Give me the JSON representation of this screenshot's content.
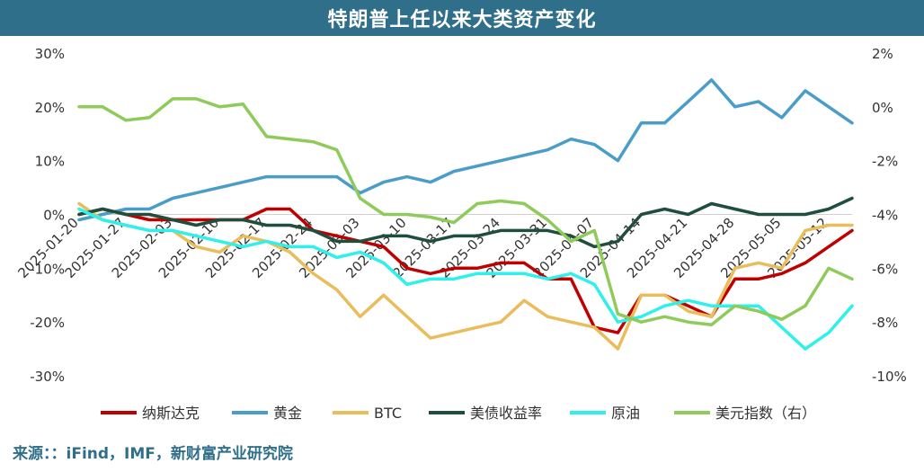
{
  "header": {
    "title": "特朗普上任以来大类资产变化"
  },
  "footer": {
    "source": "来源：：iFind，IMF，新财富产业研究院"
  },
  "chart_data": {
    "type": "line",
    "x": [
      "2025-01-20",
      "2025-01-23",
      "2025-01-27",
      "2025-01-30",
      "2025-02-03",
      "2025-02-06",
      "2025-02-10",
      "2025-02-13",
      "2025-02-17",
      "2025-02-20",
      "2025-02-24",
      "2025-02-27",
      "2025-03-03",
      "2025-03-06",
      "2025-03-10",
      "2025-03-13",
      "2025-03-17",
      "2025-03-20",
      "2025-03-24",
      "2025-03-27",
      "2025-03-31",
      "2025-04-03",
      "2025-04-07",
      "2025-04-10",
      "2025-04-14",
      "2025-04-17",
      "2025-04-21",
      "2025-04-24",
      "2025-04-28",
      "2025-05-01",
      "2025-05-05",
      "2025-05-08",
      "2025-05-12",
      "2025-05-15"
    ],
    "x_ticks": [
      "2025-01-20",
      "2025-01-27",
      "2025-02-03",
      "2025-02-10",
      "2025-02-17",
      "2025-02-24",
      "2025-03-03",
      "2025-03-10",
      "2025-03-17",
      "2025-03-24",
      "2025-03-31",
      "2025-04-07",
      "2025-04-14",
      "2025-04-21",
      "2025-04-28",
      "2025-05-05",
      "2025-05-12"
    ],
    "y_left": {
      "ticks": [
        "30%",
        "20%",
        "10%",
        "0%",
        "-10%",
        "-20%",
        "-30%"
      ],
      "ylim": [
        -30,
        30
      ]
    },
    "y_right": {
      "ticks": [
        "2%",
        "0%",
        "-2%",
        "-4%",
        "-6%",
        "-8%",
        "-10%"
      ],
      "ylim": [
        -10,
        2
      ]
    },
    "grid": false,
    "legend_position": "bottom",
    "series": [
      {
        "name": "纳斯达克",
        "color": "#c00000",
        "axis": "left",
        "values": [
          0,
          1,
          0,
          -1,
          -1,
          -1,
          -1,
          -1,
          1,
          1,
          -3,
          -4,
          -5,
          -6,
          -10,
          -11,
          -10,
          -10,
          -9,
          -9,
          -12,
          -12,
          -21,
          -22,
          -15,
          -15,
          -17,
          -19,
          -12,
          -12,
          -11,
          -9,
          -6,
          -3
        ]
      },
      {
        "name": "黄金",
        "color": "#4a9cc9",
        "axis": "left",
        "values": [
          -1,
          0,
          1,
          1,
          3,
          4,
          5,
          6,
          7,
          7,
          7,
          7,
          4,
          6,
          7,
          6,
          8,
          9,
          10,
          11,
          12,
          14,
          13,
          10,
          17,
          17,
          21,
          25,
          20,
          21,
          18,
          23,
          20,
          17
        ]
      },
      {
        "name": "BTC",
        "color": "#e9bd5c",
        "axis": "left",
        "values": [
          2,
          -1,
          -2,
          -3,
          -3,
          -6,
          -7,
          -4,
          -5,
          -7,
          -11,
          -14,
          -19,
          -15,
          -19,
          -23,
          -22,
          -21,
          -20,
          -16,
          -19,
          -20,
          -21,
          -25,
          -15,
          -15,
          -18,
          -19,
          -10,
          -9,
          -10,
          -3,
          -2,
          -2
        ]
      },
      {
        "name": "美债收益率",
        "color": "#1f4e3d",
        "axis": "left",
        "values": [
          0,
          1,
          0,
          0,
          -1,
          -2,
          -1,
          -1,
          -2,
          -2,
          -3,
          -5,
          -5,
          -4,
          -4,
          -5,
          -4,
          -4,
          -3,
          -3,
          -3,
          -4,
          -6,
          -5,
          0,
          1,
          0,
          2,
          1,
          0,
          0,
          0,
          1,
          3
        ]
      },
      {
        "name": "原油",
        "color": "#2ff0ea",
        "axis": "left",
        "values": [
          1,
          -1,
          -2,
          -3,
          -3,
          -4,
          -5,
          -6,
          -5,
          -6,
          -6,
          -8,
          -7,
          -9,
          -13,
          -12,
          -12,
          -11,
          -11,
          -11,
          -12,
          -11,
          -13,
          -20,
          -19,
          -17,
          -16,
          -17,
          -17,
          -17,
          -21,
          -25,
          -22,
          -17
        ]
      },
      {
        "name": "美元指数（右）",
        "color": "#8fcb5a",
        "axis": "right",
        "values": [
          0,
          0,
          -0.5,
          -0.4,
          0.3,
          0.3,
          0,
          0.1,
          -1.1,
          -1.2,
          -1.3,
          -1.6,
          -3.4,
          -4.0,
          -4.0,
          -4.1,
          -4.3,
          -3.6,
          -3.5,
          -3.6,
          -4.2,
          -5.0,
          -4.6,
          -7.7,
          -8.0,
          -7.8,
          -8.0,
          -8.1,
          -7.4,
          -7.6,
          -7.9,
          -7.4,
          -6.0,
          -6.4
        ]
      }
    ]
  }
}
